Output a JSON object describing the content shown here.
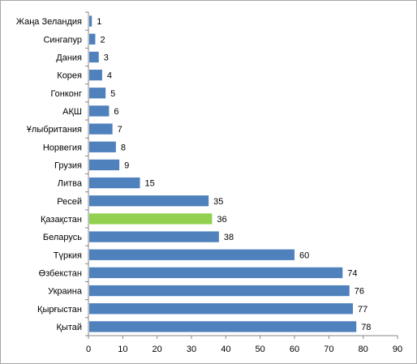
{
  "chart_data": {
    "type": "bar",
    "orientation": "horizontal",
    "categories": [
      "Жаңа Зеландия",
      "Сингапур",
      "Дания",
      "Корея",
      "Гонконг",
      "АҚШ",
      "Ұлыбритания",
      "Норвегия",
      "Грузия",
      "Литва",
      "Ресей",
      "Қазақстан",
      "Беларусь",
      "Түркия",
      "Өзбекстан",
      "Украина",
      "Қырғыстан",
      "Қытай"
    ],
    "values": [
      1,
      2,
      3,
      4,
      5,
      6,
      7,
      8,
      9,
      15,
      35,
      36,
      38,
      60,
      74,
      76,
      77,
      78
    ],
    "value_labels": [
      "1",
      "2",
      "3",
      "4",
      "5",
      "6",
      "7",
      "8",
      "9",
      "15",
      "35",
      "36",
      "38",
      "60",
      "74",
      "76",
      "77",
      "78"
    ],
    "xlim": [
      0,
      90
    ],
    "x_ticks": [
      "0",
      "10",
      "20",
      "30",
      "40",
      "50",
      "60",
      "70",
      "80",
      "90"
    ],
    "title": "",
    "xlabel": "",
    "ylabel": "",
    "grid": false,
    "legend": "none",
    "highlight_category": "Қазақстан",
    "colors": {
      "bar": "#4f81bd",
      "highlight": "#92d050",
      "axis": "#868686"
    }
  }
}
